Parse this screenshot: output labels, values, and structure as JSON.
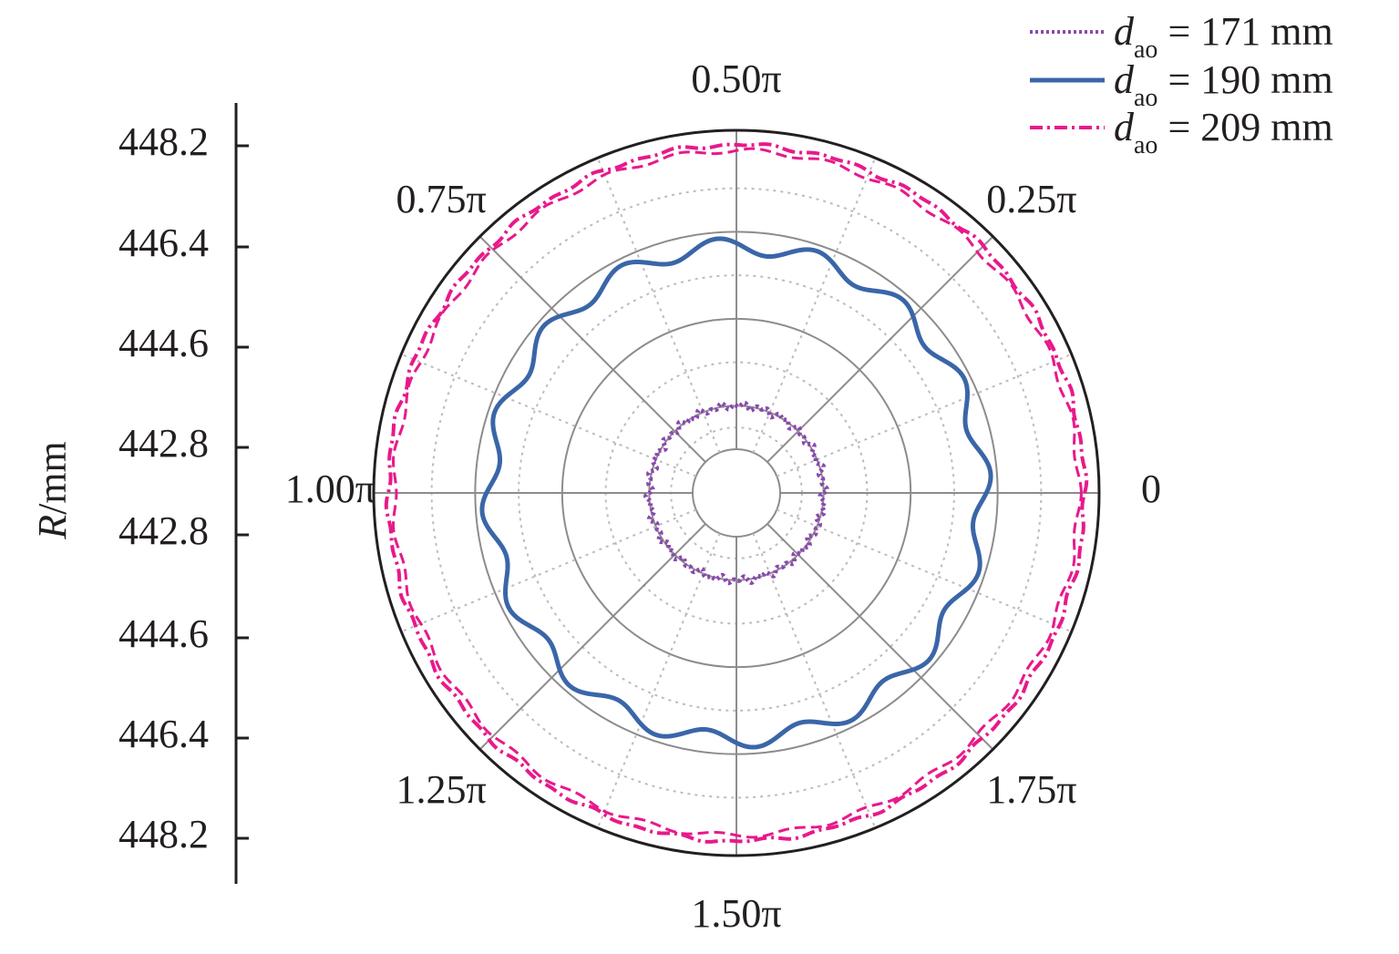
{
  "chart_data": {
    "type": "polar-line",
    "angle_unit": "rad",
    "angle_labels": [
      "0",
      "0.25π",
      "0.50π",
      "0.75π",
      "1.00π",
      "1.25π",
      "1.50π",
      "1.75π"
    ],
    "radial_axis": {
      "title_italic": "R",
      "title_rest": "/mm",
      "center_value": 441.9,
      "ticks": [
        442.8,
        444.6,
        446.4,
        448.2
      ],
      "rmax": 448.5,
      "grid": true
    },
    "series": [
      {
        "name_main": "d",
        "name_sub": "ao",
        "name_tail": " = 171 mm",
        "style": "dotted",
        "color": "#8a48b0",
        "mean_r": 442.8,
        "amplitude": 0.08,
        "waves": 0
      },
      {
        "name_main": "d",
        "name_sub": "ao",
        "name_tail": " = 190 mm",
        "style": "solid",
        "color": "#3a66a8",
        "mean_r": 446.1,
        "amplitude": 0.17,
        "waves": 16
      },
      {
        "name_main": "d",
        "name_sub": "ao",
        "name_tail": " = 209 mm",
        "style": "dashdot",
        "color": "#e8198b",
        "mean_r": 448.2,
        "amplitude": 0.05,
        "waves": 0
      }
    ],
    "legend_position": "top-right"
  }
}
